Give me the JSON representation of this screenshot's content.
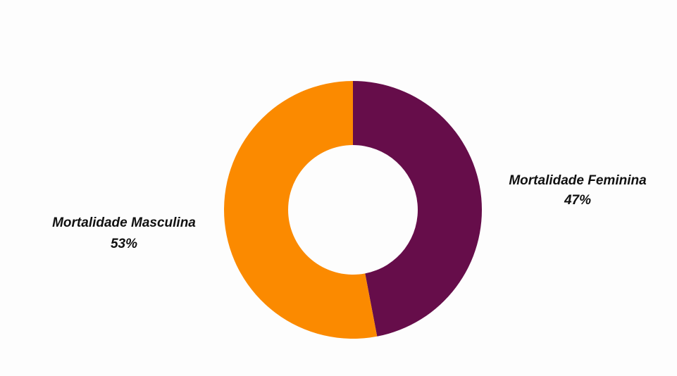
{
  "chart_data": {
    "type": "pie",
    "donut": true,
    "slices": [
      {
        "label": "Mortalidade Feminina",
        "value": 47,
        "value_label": "47%",
        "color": "#660d4a"
      },
      {
        "label": "Mortalidade Masculina",
        "value": 53,
        "value_label": "53%",
        "color": "#fb8a00"
      }
    ],
    "start_angle_deg": 0,
    "direction": "clockwise",
    "legend": "none"
  }
}
